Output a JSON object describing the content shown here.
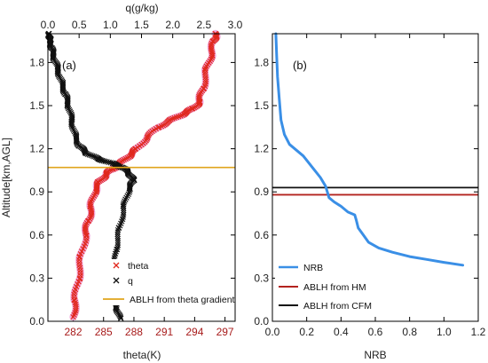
{
  "colors": {
    "theta": "#e0281e",
    "theta_halo": "#f2a6d9",
    "q": "#111111",
    "abl_theta": "#e0a51c",
    "nrb": "#3a8fe6",
    "abl_hm": "#b3231e",
    "abl_cfm": "#111111",
    "red_tick": "#a81c1c"
  },
  "chart_data": [
    {
      "type": "scatter",
      "panel_label": "(a)",
      "ylabel": "Altitude[km,AGL]",
      "ylim": [
        0,
        2
      ],
      "yticks": [
        "0.0",
        "0.3",
        "0.6",
        "0.9",
        "1.2",
        "1.5",
        "1.8"
      ],
      "xlabel_bottom": "theta(K)",
      "xlim_bottom": [
        279.5,
        298
      ],
      "xticks_bottom": [
        "282",
        "285",
        "288",
        "291",
        "294",
        "297"
      ],
      "xlabel_top": "q(g/kg)",
      "xlim_top": [
        0,
        3
      ],
      "xticks_top": [
        "0.0",
        "0.5",
        "1.0",
        "1.5",
        "2.0",
        "2.5",
        "3.0"
      ],
      "series": [
        {
          "name": "theta",
          "marker": "x",
          "axis": "bottom",
          "points": [
            [
              282.0,
              0.03
            ],
            [
              282.2,
              0.15
            ],
            [
              282.5,
              0.3
            ],
            [
              282.8,
              0.45
            ],
            [
              283.2,
              0.6
            ],
            [
              283.5,
              0.7
            ],
            [
              283.8,
              0.8
            ],
            [
              284.1,
              0.9
            ],
            [
              284.6,
              0.97
            ],
            [
              285.2,
              1.02
            ],
            [
              285.9,
              1.06
            ],
            [
              286.7,
              1.1
            ],
            [
              287.5,
              1.15
            ],
            [
              288.3,
              1.2
            ],
            [
              289.3,
              1.28
            ],
            [
              290.4,
              1.35
            ],
            [
              291.7,
              1.4
            ],
            [
              292.8,
              1.44
            ],
            [
              293.9,
              1.48
            ],
            [
              294.5,
              1.53
            ],
            [
              294.8,
              1.62
            ],
            [
              295.2,
              1.75
            ],
            [
              295.6,
              1.85
            ],
            [
              295.9,
              1.95
            ],
            [
              296.1,
              2.0
            ]
          ]
        },
        {
          "name": "q",
          "marker": "x",
          "axis": "top",
          "points": [
            [
              1.15,
              0.02
            ],
            [
              1.1,
              0.1
            ],
            [
              1.08,
              0.2
            ],
            [
              1.07,
              0.35
            ],
            [
              1.09,
              0.5
            ],
            [
              1.15,
              0.65
            ],
            [
              1.22,
              0.8
            ],
            [
              1.3,
              0.92
            ],
            [
              1.37,
              0.98
            ],
            [
              1.3,
              1.03
            ],
            [
              1.2,
              1.07
            ],
            [
              1.02,
              1.1
            ],
            [
              0.8,
              1.13
            ],
            [
              0.62,
              1.17
            ],
            [
              0.5,
              1.22
            ],
            [
              0.43,
              1.3
            ],
            [
              0.38,
              1.4
            ],
            [
              0.33,
              1.5
            ],
            [
              0.28,
              1.58
            ],
            [
              0.22,
              1.66
            ],
            [
              0.16,
              1.75
            ],
            [
              0.1,
              1.83
            ],
            [
              0.06,
              1.9
            ],
            [
              0.03,
              1.96
            ],
            [
              0.02,
              2.0
            ]
          ]
        }
      ],
      "hlines": [
        {
          "name": "ABLH from theta gradient",
          "y": 1.07,
          "color": "#e0a51c"
        }
      ],
      "legend": [
        {
          "label": "theta",
          "marker": "x",
          "color": "#e0281e"
        },
        {
          "label": "q",
          "marker": "x",
          "color": "#111111"
        },
        {
          "label": "ABLH from theta gradient",
          "marker": "line",
          "color": "#e0a51c"
        }
      ]
    },
    {
      "type": "line",
      "panel_label": "(b)",
      "xlabel": "NRB",
      "xlim": [
        0,
        1.2
      ],
      "xticks": [
        "0.0",
        "0.2",
        "0.4",
        "0.6",
        "0.8",
        "1.0",
        "1.2"
      ],
      "ylim": [
        0,
        2
      ],
      "yticks": [
        "0.0",
        "0.3",
        "0.6",
        "0.9",
        "1.2",
        "1.5",
        "1.8"
      ],
      "series": [
        {
          "name": "NRB",
          "points": [
            [
              1.11,
              0.39
            ],
            [
              1.0,
              0.41
            ],
            [
              0.9,
              0.43
            ],
            [
              0.8,
              0.45
            ],
            [
              0.7,
              0.48
            ],
            [
              0.62,
              0.51
            ],
            [
              0.56,
              0.55
            ],
            [
              0.53,
              0.6
            ],
            [
              0.5,
              0.65
            ],
            [
              0.49,
              0.7
            ],
            [
              0.48,
              0.74
            ],
            [
              0.44,
              0.76
            ],
            [
              0.4,
              0.8
            ],
            [
              0.36,
              0.83
            ],
            [
              0.33,
              0.86
            ],
            [
              0.32,
              0.9
            ],
            [
              0.31,
              0.94
            ],
            [
              0.28,
              1.0
            ],
            [
              0.24,
              1.06
            ],
            [
              0.18,
              1.15
            ],
            [
              0.1,
              1.23
            ],
            [
              0.07,
              1.3
            ],
            [
              0.05,
              1.4
            ],
            [
              0.04,
              1.55
            ],
            [
              0.03,
              1.7
            ],
            [
              0.025,
              1.85
            ],
            [
              0.02,
              2.0
            ]
          ]
        }
      ],
      "hlines": [
        {
          "name": "ABLH from HM",
          "y": 0.88,
          "color": "#b3231e"
        },
        {
          "name": "ABLH from CFM",
          "y": 0.93,
          "color": "#111111"
        }
      ],
      "legend": [
        {
          "label": "NRB",
          "marker": "line",
          "color": "#3a8fe6"
        },
        {
          "label": "ABLH from HM",
          "marker": "line",
          "color": "#b3231e"
        },
        {
          "label": "ABLH from CFM",
          "marker": "line",
          "color": "#111111"
        }
      ]
    }
  ]
}
